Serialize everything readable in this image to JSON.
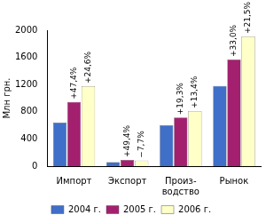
{
  "chart_data": {
    "type": "bar",
    "y_label": "Млн грн.",
    "categories": [
      "Импорт",
      "Экспорт",
      [
        "Произ-",
        "водство"
      ],
      "Рынок"
    ],
    "series": [
      {
        "name": "2004 г.",
        "color": "#3f6fc8",
        "values": [
          640,
          60,
          600,
          1180
        ]
      },
      {
        "name": "2005 г.",
        "color": "#a3206f",
        "values": [
          943,
          90,
          716,
          1569
        ],
        "annotations": [
          "+47,4%",
          "+49,4%",
          "+19,3%",
          "+33,0%"
        ]
      },
      {
        "name": "2006 г.",
        "color": "#ffffc8",
        "values": [
          1175,
          83,
          812,
          1907
        ],
        "annotations": [
          "+24,6%",
          "−7,7%",
          "+13,4%",
          "+21,5%"
        ]
      }
    ],
    "ylim": [
      0,
      2000
    ],
    "yticks": [
      0,
      400,
      800,
      1200,
      1600,
      2000
    ],
    "grid": false,
    "legend": "bottom"
  }
}
